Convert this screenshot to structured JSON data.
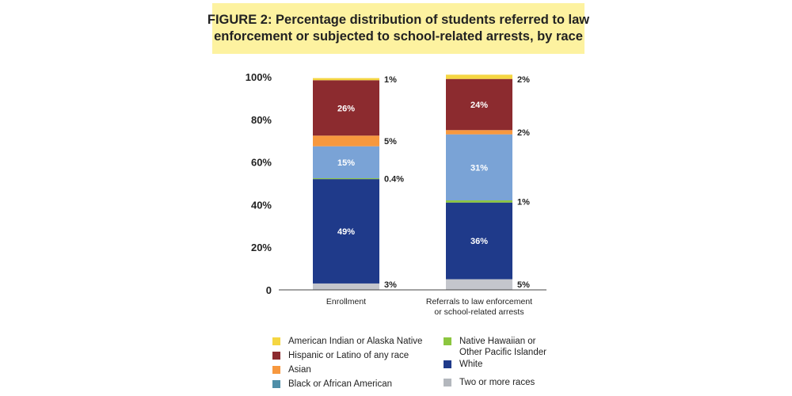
{
  "title": {
    "line1": "FIGURE 2: Percentage distribution of students referred to law",
    "line2": "enforcement or subjected to school-related arrests, by race"
  },
  "chart_data": {
    "type": "bar",
    "stacked": true,
    "categories": [
      "Enrollment",
      "Referrals to law enforcement\nor school-related arrests"
    ],
    "category_lines": [
      [
        "Enrollment"
      ],
      [
        "Referrals to law enforcement",
        "or school-related arrests"
      ]
    ],
    "yticks": [
      "0",
      "20%",
      "40%",
      "60%",
      "80%",
      "100%"
    ],
    "ylim": [
      0,
      100
    ],
    "series": [
      {
        "name": "Two or more races",
        "color": "#c4c6cc",
        "values": [
          3,
          5
        ],
        "labels": [
          "3%",
          "5%"
        ],
        "label_pos": "outside"
      },
      {
        "name": "White",
        "color": "#1f3a8a",
        "values": [
          49,
          36
        ],
        "labels": [
          "49%",
          "36%"
        ],
        "label_pos": "inside"
      },
      {
        "name": "Native Hawaiian or Other Pacific Islander",
        "color": "#8cc63f",
        "values": [
          0.4,
          1
        ],
        "labels": [
          "0.4%",
          "1%"
        ],
        "label_pos": "outside"
      },
      {
        "name": "Black or African American",
        "color": "#7aa3d6",
        "values": [
          15,
          31
        ],
        "labels": [
          "15%",
          "31%"
        ],
        "label_pos": "inside"
      },
      {
        "name": "Asian",
        "color": "#f7983e",
        "values": [
          5,
          2
        ],
        "labels": [
          "5%",
          "2%"
        ],
        "label_pos": "outside"
      },
      {
        "name": "Hispanic or Latino of any race",
        "color": "#8c2b2f",
        "values": [
          26,
          24
        ],
        "labels": [
          "26%",
          "24%"
        ],
        "label_pos": "inside"
      },
      {
        "name": "American Indian or Alaska Native",
        "color": "#f5d642",
        "values": [
          1,
          2
        ],
        "labels": [
          "1%",
          "2%"
        ],
        "label_pos": "outside"
      }
    ],
    "legend": {
      "placement": "bottom",
      "left": [
        {
          "lines": [
            "American Indian or Alaska Native"
          ],
          "color": "#f5d642"
        },
        {
          "lines": [
            "Hispanic or Latino of any race"
          ],
          "color": "#8c2b2f"
        },
        {
          "lines": [
            "Asian"
          ],
          "color": "#f7983e"
        },
        {
          "lines": [
            "Black or African American"
          ],
          "color": "#4f8ea8"
        }
      ],
      "right": [
        {
          "lines": [
            "Native Hawaiian or",
            "Other Pacific Islander"
          ],
          "color": "#8cc63f"
        },
        {
          "lines": [
            "White"
          ],
          "color": "#1f3a8a"
        },
        {
          "lines": [
            "Two or more races"
          ],
          "color": "#b3b7bd"
        }
      ]
    }
  }
}
